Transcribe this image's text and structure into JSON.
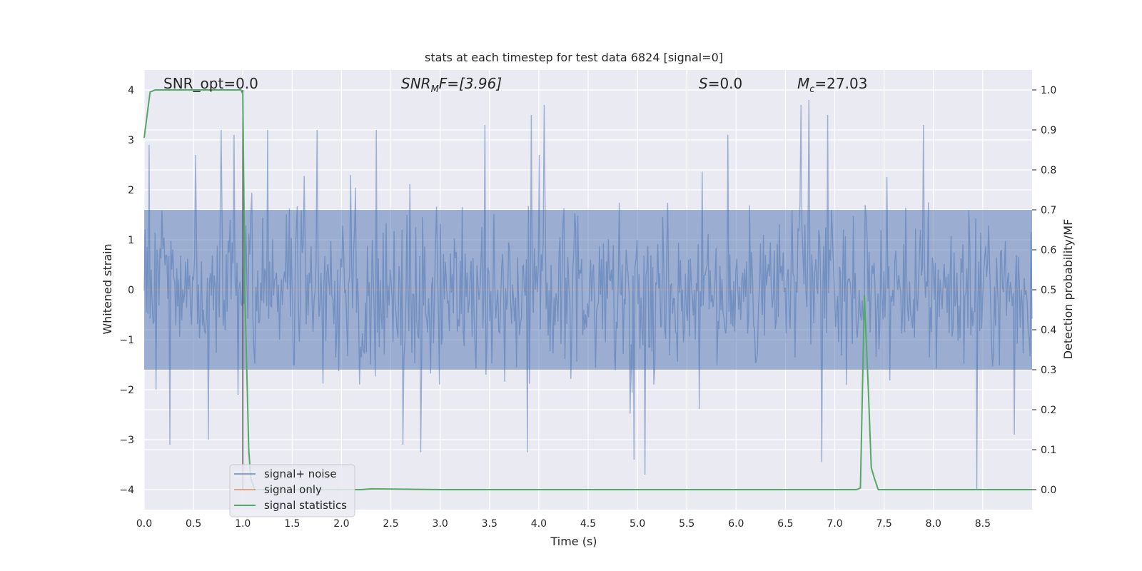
{
  "chart_data": {
    "type": "line",
    "title": "stats at each timestep for test data 6824 [signal=0]",
    "xlabel": "Time (s)",
    "ylabel_left": "Whitened strain",
    "ylabel_right": "Detection probability/MF",
    "xlim": [
      0.0,
      9.0
    ],
    "ylim_left": [
      -4.4,
      4.4
    ],
    "ylim_right": [
      -0.05,
      1.05
    ],
    "x_ticks": [
      "0.0",
      "0.5",
      "1.0",
      "1.5",
      "2.0",
      "2.5",
      "3.0",
      "3.5",
      "4.0",
      "4.5",
      "5.0",
      "5.5",
      "6.0",
      "6.5",
      "7.0",
      "7.5",
      "8.0",
      "8.5"
    ],
    "y_ticks_left": [
      "4",
      "3",
      "2",
      "1",
      "0",
      "−1",
      "−2",
      "−3",
      "−4"
    ],
    "y_ticks_right": [
      "1.0",
      "0.9",
      "0.8",
      "0.7",
      "0.6",
      "0.5",
      "0.4",
      "0.3",
      "0.2",
      "0.1",
      "0.0"
    ],
    "grid": true,
    "background": "#eaeaf2",
    "legend_position": "lower-left",
    "annotations": {
      "snr_opt": "SNR_opt=0.0",
      "snr_mf_base": "SNR",
      "snr_mf_sub": "M",
      "snr_mf_rest": "F=[3.96]",
      "s_var": "S",
      "s_rest": "=0.0",
      "mc_var": "M",
      "mc_sub": "c",
      "mc_rest": "=27.03"
    },
    "series": [
      {
        "name": "signal+ noise",
        "axis": "left",
        "color": "#4c72b0",
        "opacity": 0.5,
        "noise_std": 0.8,
        "n_points": 900,
        "peaks": [
          {
            "x": 0.05,
            "y": 2.9
          },
          {
            "x": 0.12,
            "y": -2.0
          },
          {
            "x": 0.26,
            "y": -3.1
          },
          {
            "x": 0.52,
            "y": 2.7
          },
          {
            "x": 0.65,
            "y": -3.0
          },
          {
            "x": 0.78,
            "y": 3.2
          },
          {
            "x": 0.91,
            "y": 3.1
          },
          {
            "x": 0.95,
            "y": -2.1
          },
          {
            "x": 1.25,
            "y": 3.2
          },
          {
            "x": 1.75,
            "y": 3.2
          },
          {
            "x": 2.35,
            "y": 3.2
          },
          {
            "x": 2.62,
            "y": -3.1
          },
          {
            "x": 2.8,
            "y": -3.25
          },
          {
            "x": 3.45,
            "y": 3.3
          },
          {
            "x": 3.92,
            "y": 3.5
          },
          {
            "x": 4.05,
            "y": 3.7
          },
          {
            "x": 3.88,
            "y": -3.25
          },
          {
            "x": 4.97,
            "y": -3.4
          },
          {
            "x": 5.08,
            "y": -3.7
          },
          {
            "x": 5.92,
            "y": 3.1
          },
          {
            "x": 6.66,
            "y": 3.7
          },
          {
            "x": 6.74,
            "y": 3.8
          },
          {
            "x": 6.87,
            "y": -3.45
          },
          {
            "x": 6.93,
            "y": 3.5
          },
          {
            "x": 7.9,
            "y": 3.3
          },
          {
            "x": 8.44,
            "y": -4.0
          },
          {
            "x": 8.82,
            "y": -2.9
          }
        ]
      },
      {
        "name": "signal only",
        "axis": "left",
        "color": "#dd8452",
        "x": [
          0.0,
          9.0
        ],
        "y": [
          0.0,
          0.0
        ]
      },
      {
        "name": "signal statistics",
        "axis": "right",
        "color": "#55a868",
        "x": [
          0.0,
          0.06,
          0.11,
          0.2,
          0.4,
          0.6,
          0.8,
          0.98,
          1.0,
          1.02,
          1.06,
          1.08,
          1.12,
          1.2,
          2.2,
          2.3,
          3.0,
          4.0,
          5.0,
          6.0,
          7.0,
          7.22,
          7.26,
          7.3,
          7.34,
          7.37,
          7.4,
          7.44,
          7.5,
          8.0,
          8.5,
          9.0
        ],
        "y": [
          0.88,
          0.995,
          1.0,
          1.0,
          1.0,
          1.0,
          1.0,
          1.0,
          0.99,
          0.5,
          0.1,
          0.03,
          0.0,
          0.0,
          0.0,
          0.002,
          0.0,
          0.0,
          0.0,
          0.0,
          0.0,
          0.0,
          0.004,
          0.485,
          0.25,
          0.055,
          0.03,
          0.0,
          0.0,
          0.0,
          0.0,
          0.0
        ]
      },
      {
        "name": "",
        "axis": "left",
        "color": "#555555",
        "x": [
          1.0,
          1.0
        ],
        "y": [
          4.0,
          -4.0
        ]
      }
    ]
  }
}
